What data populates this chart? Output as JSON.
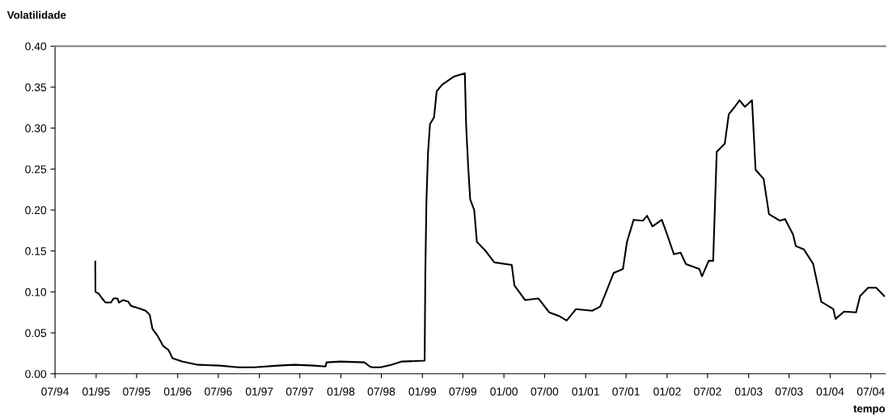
{
  "chart_data": {
    "type": "line",
    "ylabel": "Volatilidade",
    "xlabel": "tempo",
    "xlim": [
      "1994-07-01",
      "2004-09-04"
    ],
    "ylim": [
      0,
      0.4
    ],
    "yticks": [
      {
        "value": 0,
        "label": "0.00"
      },
      {
        "value": 0.05,
        "label": "0.05"
      },
      {
        "value": 0.1,
        "label": "0.10"
      },
      {
        "value": 0.15,
        "label": "0.15"
      },
      {
        "value": 0.2,
        "label": "0.20"
      },
      {
        "value": 0.25,
        "label": "0.25"
      },
      {
        "value": 0.3,
        "label": "0.30"
      },
      {
        "value": 0.35,
        "label": "0.35"
      },
      {
        "value": 0.4,
        "label": "0.40"
      }
    ],
    "xticks": [
      {
        "value": "1994-07-01",
        "label": "07/94"
      },
      {
        "value": "1995-01-01",
        "label": "01/95"
      },
      {
        "value": "1995-07-01",
        "label": "07/95"
      },
      {
        "value": "1996-01-01",
        "label": "01/96"
      },
      {
        "value": "1996-07-01",
        "label": "07/96"
      },
      {
        "value": "1997-01-01",
        "label": "01/97"
      },
      {
        "value": "1997-07-01",
        "label": "07/97"
      },
      {
        "value": "1998-01-01",
        "label": "01/98"
      },
      {
        "value": "1998-07-01",
        "label": "07/98"
      },
      {
        "value": "1999-01-01",
        "label": "01/99"
      },
      {
        "value": "1999-07-01",
        "label": "07/99"
      },
      {
        "value": "2000-01-01",
        "label": "01/00"
      },
      {
        "value": "2000-07-01",
        "label": "07/00"
      },
      {
        "value": "2001-01-01",
        "label": "01/01"
      },
      {
        "value": "2001-07-01",
        "label": "07/01"
      },
      {
        "value": "2002-01-01",
        "label": "01/02"
      },
      {
        "value": "2002-07-01",
        "label": "07/02"
      },
      {
        "value": "2003-01-01",
        "label": "01/03"
      },
      {
        "value": "2003-07-01",
        "label": "07/03"
      },
      {
        "value": "2004-01-01",
        "label": "01/04"
      },
      {
        "value": "2004-07-01",
        "label": "07/04"
      }
    ],
    "grid": false,
    "marker": "none",
    "line_style": "solid",
    "series": [
      {
        "color": "#000000",
        "x": [
          "1994-12-28",
          "1994-12-29",
          "1995-01-12",
          "1995-01-25",
          "1995-02-12",
          "1995-03-08",
          "1995-03-20",
          "1995-04-07",
          "1995-04-13",
          "1995-05-01",
          "1995-05-25",
          "1995-06-06",
          "1995-07-12",
          "1995-08-11",
          "1995-08-29",
          "1995-09-10",
          "1995-10-04",
          "1995-10-28",
          "1995-11-21",
          "1995-12-09",
          "1996-01-20",
          "1996-04-01",
          "1996-07-06",
          "1996-09-28",
          "1996-12-09",
          "1997-03-27",
          "1997-06-07",
          "1997-08-31",
          "1997-10-24",
          "1997-10-29",
          "1997-12-29",
          "1998-04-16",
          "1998-05-10",
          "1998-05-22",
          "1998-06-27",
          "1998-08-14",
          "1998-10-01",
          "1999-01-11",
          "1999-01-14",
          "1999-01-19",
          "1999-01-26",
          "1999-02-04",
          "1999-02-22",
          "1999-03-06",
          "1999-03-30",
          "1999-05-23",
          "1999-07-10",
          "1999-07-16",
          "1999-07-25",
          "1999-08-03",
          "1999-08-21",
          "1999-09-02",
          "1999-10-08",
          "1999-11-19",
          "2000-02-05",
          "2000-02-17",
          "2000-04-05",
          "2000-06-04",
          "2000-07-22",
          "2000-09-08",
          "2000-10-08",
          "2000-11-19",
          "2001-01-30",
          "2001-03-07",
          "2001-03-31",
          "2001-05-06",
          "2001-06-17",
          "2001-07-05",
          "2001-08-04",
          "2001-09-15",
          "2001-10-03",
          "2001-10-27",
          "2001-12-08",
          "2002-01-01",
          "2002-01-31",
          "2002-03-02",
          "2002-03-26",
          "2002-05-25",
          "2002-06-06",
          "2002-07-06",
          "2002-07-26",
          "2002-08-11",
          "2002-09-16",
          "2002-10-04",
          "2002-10-28",
          "2002-11-21",
          "2002-12-15",
          "2003-01-16",
          "2003-02-01",
          "2003-03-09",
          "2003-04-02",
          "2003-05-20",
          "2003-06-13",
          "2003-07-19",
          "2003-07-31",
          "2003-09-05",
          "2003-10-17",
          "2003-11-22",
          "2004-01-15",
          "2004-01-25",
          "2004-03-03",
          "2004-04-26",
          "2004-05-14",
          "2004-06-19",
          "2004-07-25",
          "2004-08-30"
        ],
        "values": [
          0.137,
          0.1,
          0.098,
          0.093,
          0.087,
          0.087,
          0.092,
          0.092,
          0.087,
          0.09,
          0.088,
          0.083,
          0.08,
          0.077,
          0.072,
          0.055,
          0.046,
          0.034,
          0.029,
          0.019,
          0.015,
          0.011,
          0.01,
          0.008,
          0.008,
          0.01,
          0.011,
          0.01,
          0.009,
          0.014,
          0.015,
          0.014,
          0.009,
          0.008,
          0.008,
          0.011,
          0.015,
          0.016,
          0.121,
          0.21,
          0.269,
          0.305,
          0.313,
          0.345,
          0.353,
          0.363,
          0.367,
          0.302,
          0.253,
          0.213,
          0.2,
          0.161,
          0.151,
          0.136,
          0.133,
          0.108,
          0.09,
          0.092,
          0.075,
          0.07,
          0.065,
          0.079,
          0.077,
          0.082,
          0.098,
          0.123,
          0.128,
          0.161,
          0.188,
          0.187,
          0.193,
          0.18,
          0.188,
          0.17,
          0.146,
          0.148,
          0.134,
          0.128,
          0.119,
          0.138,
          0.138,
          0.271,
          0.281,
          0.317,
          0.325,
          0.334,
          0.326,
          0.334,
          0.249,
          0.238,
          0.195,
          0.187,
          0.189,
          0.17,
          0.156,
          0.152,
          0.134,
          0.088,
          0.079,
          0.067,
          0.076,
          0.075,
          0.095,
          0.105,
          0.105,
          0.095
        ]
      }
    ]
  }
}
